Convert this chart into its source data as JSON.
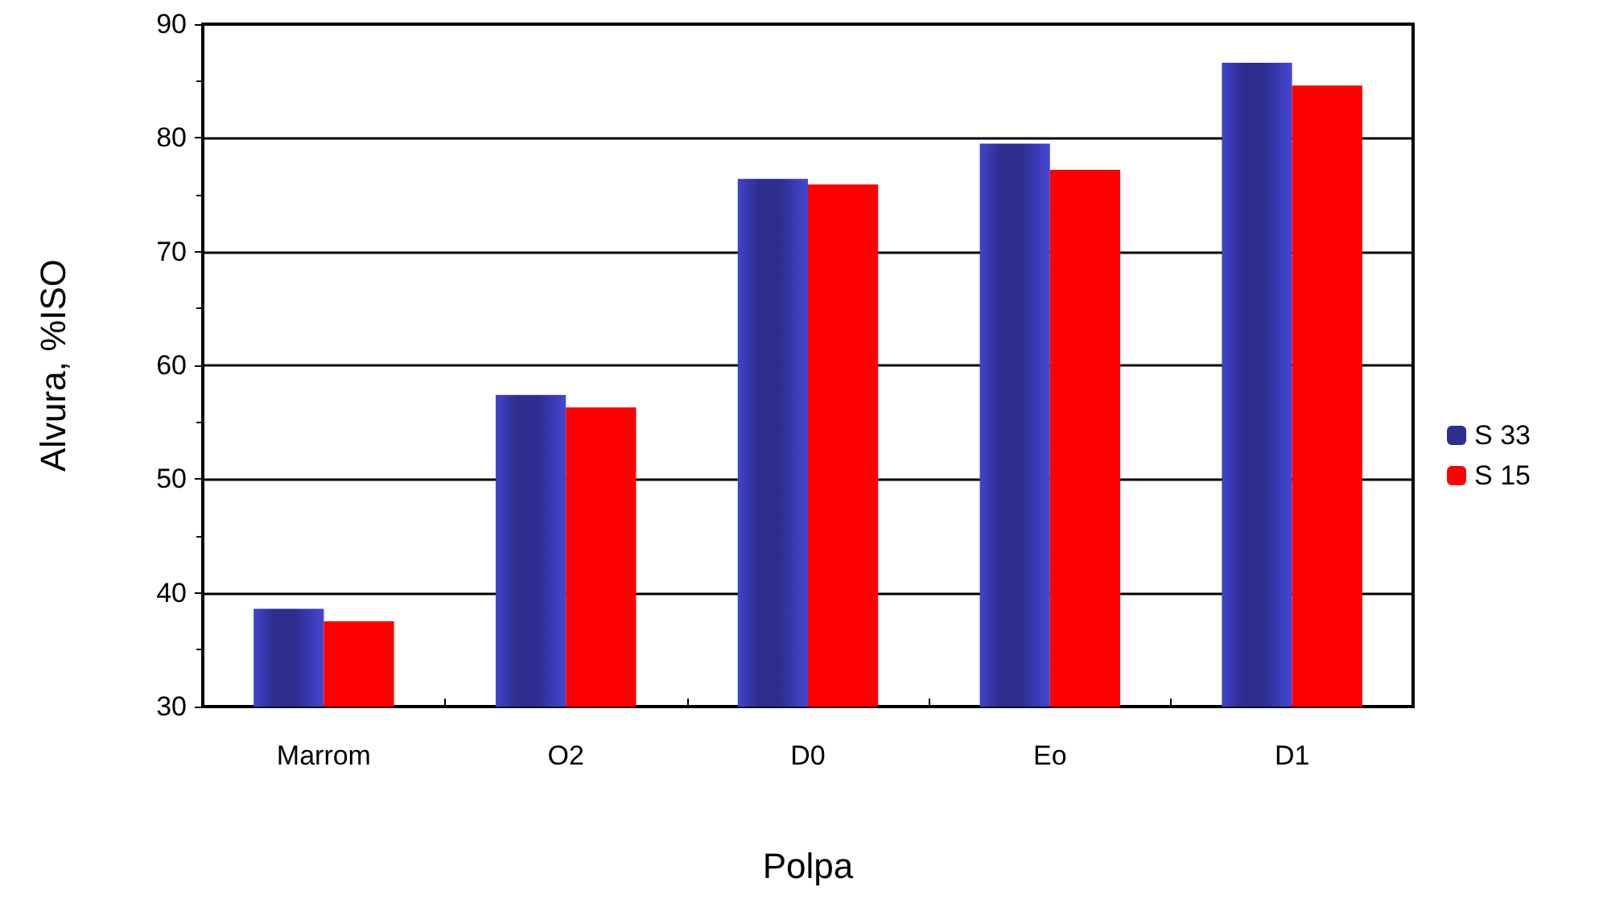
{
  "chart_data": {
    "type": "bar",
    "xlabel": "Polpa",
    "ylabel": "Alvura, %ISO",
    "categories": [
      "Marrom",
      "O2",
      "D0",
      "Eo",
      "D1"
    ],
    "series": [
      {
        "name": "S 33",
        "color": "#2e2e8e",
        "values": [
          38.6,
          57.4,
          76.4,
          79.5,
          86.6
        ]
      },
      {
        "name": "S 15",
        "color": "#ff0000",
        "values": [
          37.5,
          56.3,
          75.9,
          77.2,
          84.6
        ]
      }
    ],
    "ylim": [
      30,
      90
    ],
    "yticks": [
      30,
      40,
      50,
      60,
      70,
      80,
      90
    ],
    "grid": "y",
    "legend": "right"
  }
}
